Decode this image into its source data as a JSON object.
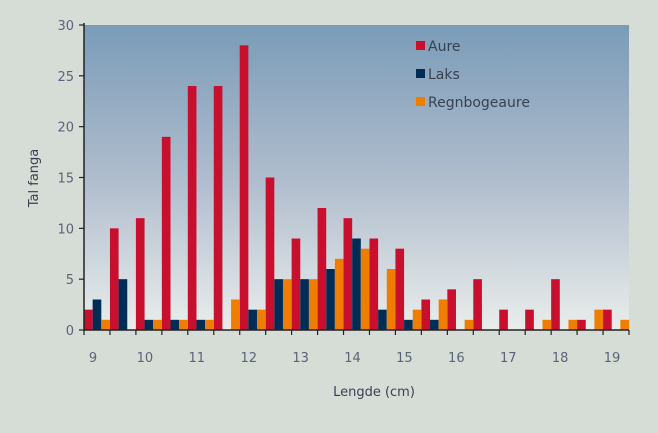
{
  "chart_data": {
    "type": "bar",
    "title": "",
    "xlabel": "Lengde (cm)",
    "ylabel": "Tal fanga",
    "ylim": [
      0,
      30
    ],
    "yticks": [
      0,
      5,
      10,
      15,
      20,
      25,
      30
    ],
    "xtick_labels": [
      "9",
      "10",
      "11",
      "12",
      "13",
      "14",
      "15",
      "16",
      "17",
      "18",
      "19"
    ],
    "categories": [
      9,
      9.5,
      10,
      10.5,
      11,
      11.5,
      12,
      12.5,
      13,
      13.5,
      14,
      14.5,
      15,
      15.5,
      16,
      16.5,
      17,
      17.5,
      18,
      18.5,
      19
    ],
    "legend_position": "top-right",
    "series": [
      {
        "name": "Aure",
        "color": "#c8102e",
        "values": [
          2,
          10,
          11,
          19,
          24,
          24,
          28,
          15,
          9,
          12,
          11,
          9,
          8,
          3,
          4,
          5,
          2,
          2,
          5,
          1,
          2
        ]
      },
      {
        "name": "Laks",
        "color": "#002d56",
        "values": [
          3,
          5,
          1,
          1,
          1,
          0,
          2,
          5,
          5,
          6,
          9,
          2,
          1,
          1,
          0,
          0,
          0,
          0,
          0,
          0,
          0
        ]
      },
      {
        "name": "Regnbogeaure",
        "color": "#ef7d00",
        "values": [
          1,
          0,
          1,
          1,
          1,
          3,
          2,
          5,
          5,
          7,
          8,
          6,
          2,
          3,
          1,
          0,
          0,
          1,
          1,
          2,
          1
        ]
      }
    ]
  }
}
